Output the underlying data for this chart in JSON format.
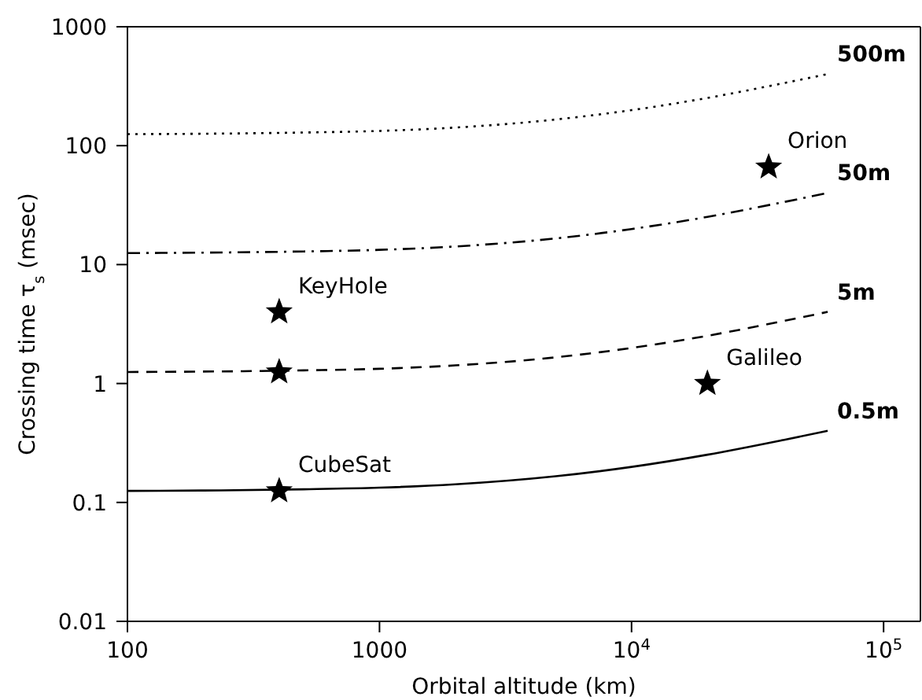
{
  "chart_data": {
    "type": "line",
    "xlabel": "Orbital altitude (km)",
    "ylabel": "Crossing time τ$_{s}$ (msec)",
    "log": "xy",
    "xlim": [
      100,
      140000
    ],
    "ylim": [
      0.01,
      1000
    ],
    "xticks": [
      100,
      1000,
      {
        "value": 10000,
        "label": "10$^{4}$"
      },
      {
        "value": 100000,
        "label": "10$^{5}$"
      }
    ],
    "yticks": [
      0.01,
      0.1,
      1,
      10,
      100,
      1000
    ],
    "x": [
      100,
      200,
      500,
      1000,
      2000,
      5000,
      10000,
      20000,
      40000,
      60000
    ],
    "series": [
      {
        "name": "500m",
        "color": "#000000",
        "line_style": "dotted",
        "values": [
          125,
          126,
          129,
          133,
          142,
          166,
          199,
          252,
          335,
          400
        ]
      },
      {
        "name": "50m",
        "color": "#000000",
        "line_style": "dashdot",
        "values": [
          12.5,
          12.6,
          12.9,
          13.3,
          14.2,
          16.6,
          19.9,
          25.2,
          33.5,
          40
        ]
      },
      {
        "name": "5m",
        "color": "#000000",
        "line_style": "dashed",
        "values": [
          1.25,
          1.26,
          1.29,
          1.33,
          1.42,
          1.66,
          1.99,
          2.52,
          3.35,
          4
        ]
      },
      {
        "name": "0.5m",
        "color": "#000000",
        "line_style": "solid",
        "values": [
          0.125,
          0.126,
          0.129,
          0.133,
          0.142,
          0.166,
          0.199,
          0.252,
          0.335,
          0.4
        ]
      },
      {
        "type": "scatter",
        "marker": "star",
        "color": "#000000",
        "x": [
          400,
          400,
          400,
          20000,
          35000
        ],
        "values": [
          4,
          1.25,
          0.125,
          1,
          66
        ]
      }
    ],
    "annotations": [
      {
        "text": "KeyHole",
        "x": 400,
        "y": 4
      },
      {
        "text": "CubeSat",
        "x": 400,
        "y": 0.125
      },
      {
        "text": "Galileo",
        "x": 20000,
        "y": 1
      },
      {
        "text": "Orion",
        "x": 35000,
        "y": 66
      }
    ]
  }
}
